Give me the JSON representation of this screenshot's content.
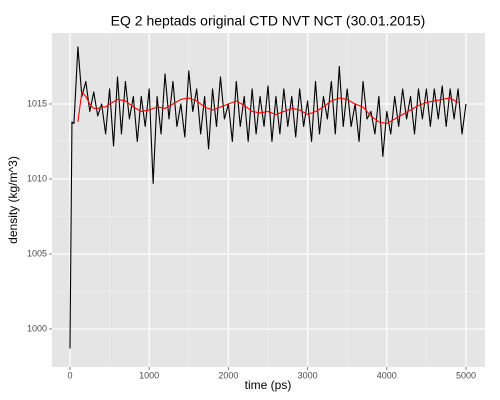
{
  "chart_data": {
    "type": "line",
    "title": "EQ 2 heptads original CTD NVT NCT (30.01.2015)",
    "x_label": "time (ps)",
    "y_label": "density (kg/m^3)",
    "xlim": [
      -227,
      5240
    ],
    "ylim": [
      997.47,
      1019.73
    ],
    "xticks": [
      0,
      1000,
      2000,
      3000,
      4000,
      5000
    ],
    "yticks": [
      1000,
      1005,
      1010,
      1015
    ],
    "grid": true,
    "series": [
      {
        "color": "#000000",
        "x": [
          0,
          25,
          50,
          100,
          150,
          200,
          250,
          300,
          350,
          400,
          450,
          500,
          550,
          600,
          650,
          700,
          750,
          800,
          850,
          900,
          950,
          1000,
          1050,
          1100,
          1150,
          1200,
          1250,
          1300,
          1350,
          1400,
          1450,
          1500,
          1550,
          1600,
          1650,
          1700,
          1750,
          1800,
          1850,
          1900,
          1950,
          2000,
          2050,
          2100,
          2150,
          2200,
          2250,
          2300,
          2350,
          2400,
          2450,
          2500,
          2550,
          2600,
          2650,
          2700,
          2750,
          2800,
          2850,
          2900,
          2950,
          3000,
          3050,
          3100,
          3150,
          3200,
          3250,
          3300,
          3350,
          3400,
          3450,
          3500,
          3550,
          3600,
          3650,
          3700,
          3750,
          3800,
          3850,
          3900,
          3950,
          4000,
          4050,
          4100,
          4150,
          4200,
          4250,
          4300,
          4350,
          4400,
          4450,
          4500,
          4550,
          4600,
          4650,
          4700,
          4750,
          4800,
          4850,
          4900,
          4950,
          5000
        ],
        "values": [
          998.7,
          1013.8,
          1013.7,
          1018.8,
          1015.5,
          1016.5,
          1014.5,
          1015.8,
          1014.2,
          1015,
          1013,
          1016,
          1012.2,
          1016.8,
          1013,
          1016.5,
          1014,
          1015.5,
          1012.5,
          1015.5,
          1013.5,
          1016,
          1009.7,
          1015.5,
          1013,
          1017,
          1014,
          1016.5,
          1013.5,
          1015,
          1012.8,
          1017.2,
          1014.5,
          1016,
          1013,
          1015.5,
          1012,
          1016,
          1013.5,
          1016.8,
          1014,
          1015,
          1012.5,
          1016.5,
          1013.5,
          1015.5,
          1012.5,
          1016,
          1013,
          1015.5,
          1013.5,
          1016.2,
          1012.5,
          1015.5,
          1013,
          1016,
          1013.5,
          1015.5,
          1012.8,
          1016,
          1013.5,
          1015.2,
          1012.5,
          1016.5,
          1013,
          1015.5,
          1014,
          1016.5,
          1013,
          1017.5,
          1013.5,
          1016,
          1013.5,
          1015,
          1012.5,
          1016.5,
          1014,
          1014.5,
          1013,
          1015.5,
          1011.5,
          1014.5,
          1013,
          1015.5,
          1013.5,
          1016,
          1014,
          1015.5,
          1013,
          1016,
          1014,
          1016,
          1013.5,
          1016,
          1014,
          1016.2,
          1013.5,
          1016,
          1014,
          1016,
          1013,
          1015
        ]
      },
      {
        "color": "#ff0000",
        "x": [
          100,
          150,
          200,
          250,
          300,
          350,
          400,
          450,
          500,
          600,
          700,
          800,
          900,
          1000,
          1100,
          1200,
          1300,
          1400,
          1500,
          1600,
          1700,
          1800,
          1900,
          2000,
          2100,
          2200,
          2300,
          2400,
          2500,
          2600,
          2700,
          2800,
          2900,
          3000,
          3100,
          3200,
          3300,
          3400,
          3500,
          3600,
          3700,
          3800,
          3900,
          4000,
          4100,
          4200,
          4300,
          4400,
          4500,
          4600,
          4700,
          4800,
          4900
        ],
        "values": [
          1013.8,
          1015.8,
          1015.5,
          1015,
          1014.7,
          1014.7,
          1014.8,
          1014.8,
          1015,
          1015.3,
          1015.2,
          1014.8,
          1014.5,
          1014.6,
          1014.8,
          1014.7,
          1015,
          1015.3,
          1015.4,
          1015.2,
          1014.8,
          1014.6,
          1014.8,
          1015,
          1015.2,
          1014.9,
          1014.5,
          1014.4,
          1014.5,
          1014.3,
          1014.5,
          1014.7,
          1014.6,
          1014.3,
          1014.5,
          1014.8,
          1015.2,
          1015.4,
          1015.3,
          1015,
          1014.8,
          1014.2,
          1013.8,
          1013.7,
          1014,
          1014.3,
          1014.6,
          1014.9,
          1015.1,
          1015.2,
          1015.3,
          1015.4,
          1015.1
        ]
      }
    ]
  }
}
